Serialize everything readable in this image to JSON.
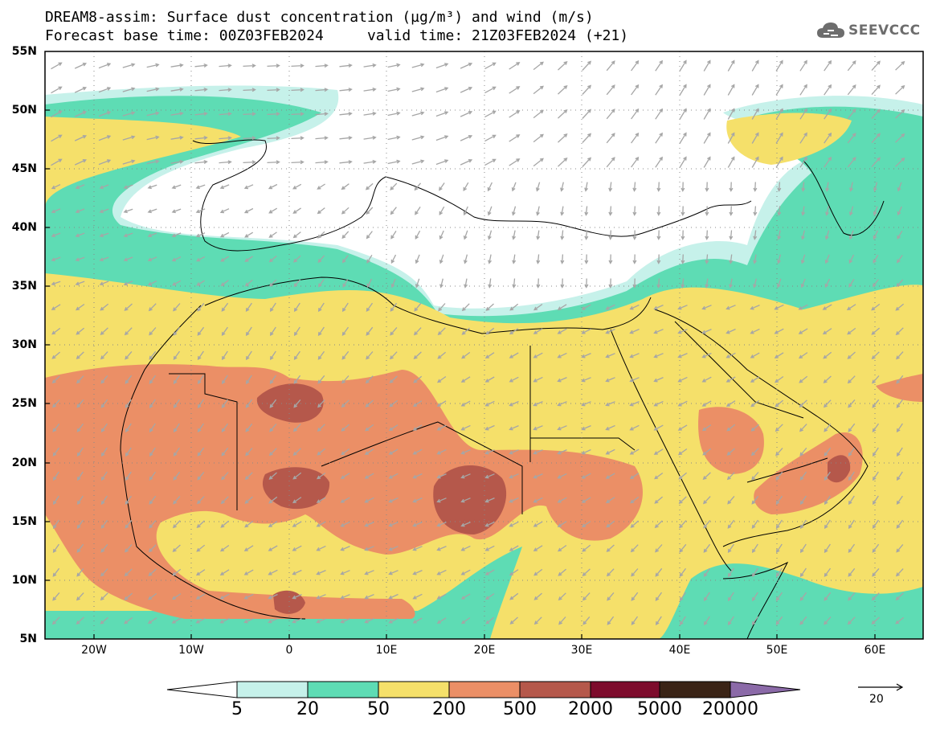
{
  "header": {
    "line1": "DREAM8-assim: Surface dust concentration (µg/m³) and wind (m/s)",
    "line2": "Forecast base time: 00Z03FEB2024     valid time: 21Z03FEB2024 (+21)"
  },
  "logo": {
    "text": "SEEVCCC",
    "icon": "cloud-icon"
  },
  "axes": {
    "lat_labels": [
      "55N",
      "50N",
      "45N",
      "40N",
      "35N",
      "30N",
      "25N",
      "20N",
      "15N",
      "10N",
      "5N"
    ],
    "lon_labels": [
      "20W",
      "10W",
      "0",
      "10E",
      "20E",
      "30E",
      "40E",
      "50E",
      "60E"
    ],
    "lat_range": [
      5,
      55
    ],
    "lon_range": [
      -25,
      65
    ],
    "grid": true,
    "grid_style": "dotted"
  },
  "colorbar": {
    "thresholds": [
      "5",
      "20",
      "50",
      "200",
      "500",
      "2000",
      "5000",
      "20000"
    ],
    "colors": [
      "#c6f1ea",
      "#5edcb4",
      "#f5e06a",
      "#eb8f66",
      "#b5584b",
      "#7d0b2c",
      "#3a2416"
    ],
    "under_color": "#ffffff",
    "over_color": "#8b6aa8"
  },
  "wind": {
    "reference_vector_label": "20",
    "arrow_color": "#a6a6a6"
  }
}
